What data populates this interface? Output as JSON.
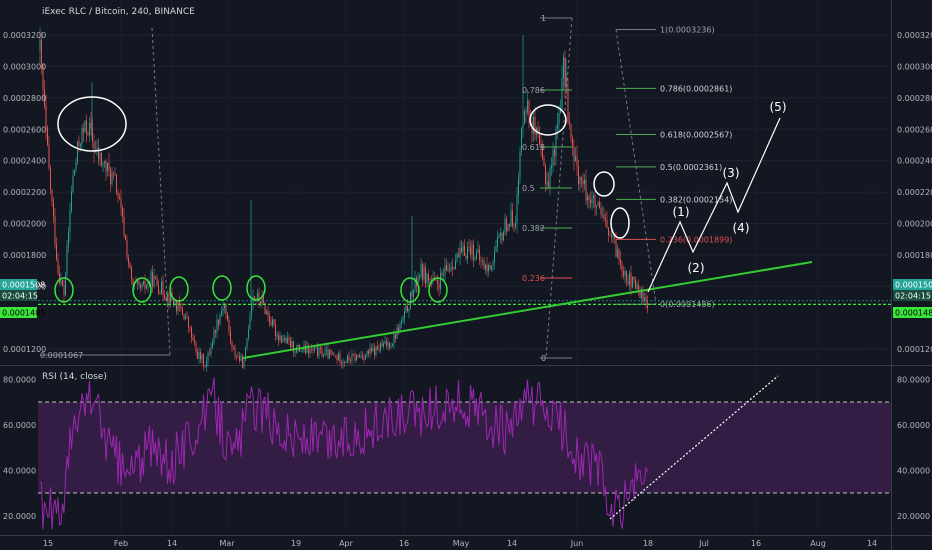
{
  "header": {
    "title": "iExec RLC / Bitcoin, 240, BINANCE"
  },
  "rsi_panel": {
    "label": "RSI (14, close)"
  },
  "colors": {
    "background": "#131722",
    "candle_up": "#26a69a",
    "candle_down": "#ef5350",
    "rsi_line": "#9c27b0",
    "rsi_band": "#3a1f4a",
    "trendline": "#33cc33",
    "support": "#39e639",
    "fib": "#4caf50",
    "fib_red": "#e05050",
    "annotation": "#ffffff"
  },
  "price_badges": {
    "current": "0.0001508",
    "countdown": "02:04:15",
    "support": "0.0001485"
  },
  "chart_data": [
    {
      "type": "candlestick",
      "x_labels": [
        "15",
        "Feb",
        "14",
        "Mar",
        "19",
        "Apr",
        "16",
        "May",
        "14",
        "Jun",
        "18",
        "Jul",
        "16",
        "Aug",
        "14"
      ],
      "y_ticks": [
        "0.0003200",
        "0.0003000",
        "0.0002800",
        "0.0002600",
        "0.0002400",
        "0.0002200",
        "0.0002000",
        "0.0001800",
        "0.0001600",
        "0.0001200"
      ],
      "ylim": [
        0.0001,
        0.00033
      ],
      "support_level": 0.0001485,
      "current_price": 0.0001508,
      "swing_low_label": "0.0001067",
      "fib_left": [
        {
          "label": "1"
        },
        {
          "label": "0.786"
        },
        {
          "label": "0.618"
        },
        {
          "label": "0.5"
        },
        {
          "label": "0.382"
        },
        {
          "label": "0.236"
        },
        {
          "label": "0"
        }
      ],
      "fib_right": [
        {
          "label": "1(0.0003236)",
          "value": 0.0003236
        },
        {
          "label": "0.786(0.0002861)",
          "value": 0.0002861
        },
        {
          "label": "0.618(0.0002567)",
          "value": 0.0002567
        },
        {
          "label": "0.5(0.0002361)",
          "value": 0.0002361
        },
        {
          "label": "0.382(0.0002154)",
          "value": 0.0002154
        },
        {
          "label": "0.236(0.0001899)",
          "value": 0.0001899
        },
        {
          "label": "0(0.0001486)",
          "value": 0.0001486
        }
      ],
      "elliott_waves": [
        "(1)",
        "(2)",
        "(3)",
        "(4)",
        "(5)"
      ]
    },
    {
      "type": "line",
      "name": "RSI (14, close)",
      "y_ticks": [
        "80.0000",
        "60.0000",
        "40.0000",
        "20.0000"
      ],
      "ylim": [
        12,
        86
      ],
      "band": [
        30,
        70
      ]
    }
  ]
}
